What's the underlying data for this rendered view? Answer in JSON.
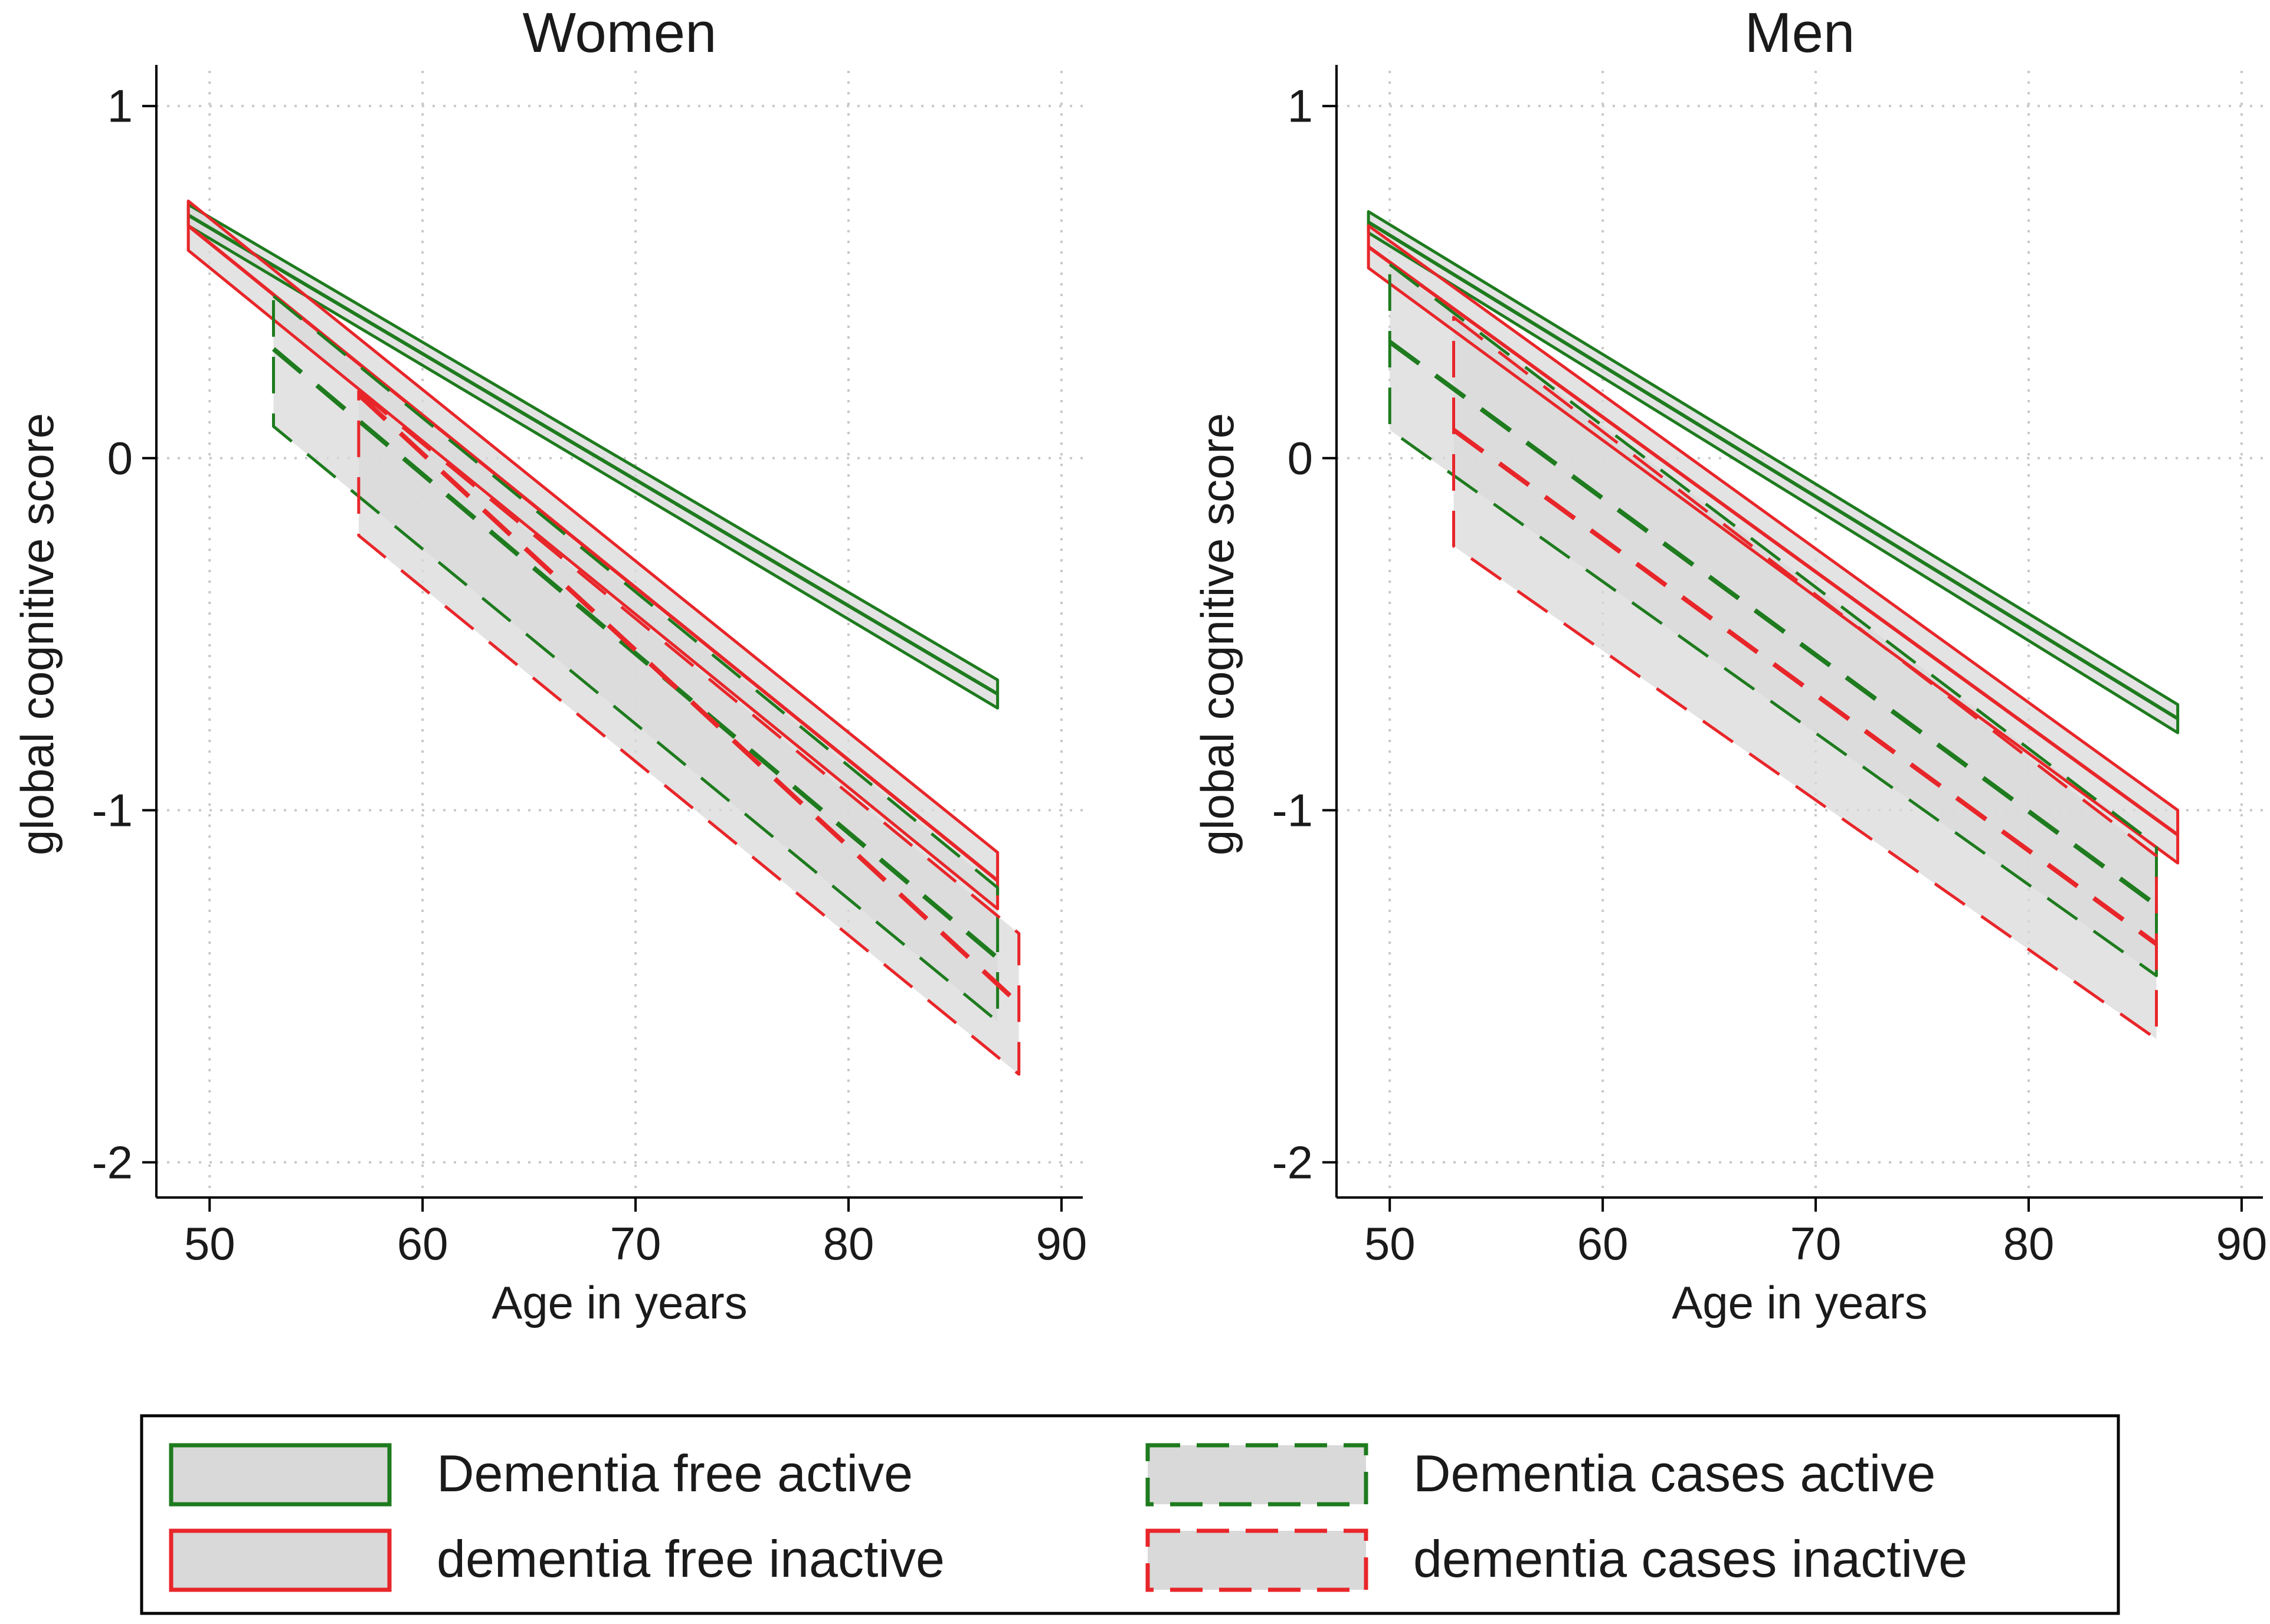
{
  "colors": {
    "active": "#1e7b1e",
    "inactive": "#e8262a",
    "band_fill": "#d9d9d9",
    "axis": "#000000",
    "grid": "#c8c8c8"
  },
  "legend": {
    "items": [
      {
        "label": "Dementia free active",
        "color": "active",
        "dashed": false
      },
      {
        "label": "Dementia cases active",
        "color": "active",
        "dashed": true
      },
      {
        "label": "dementia free inactive",
        "color": "inactive",
        "dashed": false
      },
      {
        "label": "dementia cases inactive",
        "color": "inactive",
        "dashed": true
      }
    ]
  },
  "chart_data": [
    {
      "type": "line",
      "title": "Women",
      "xlabel": "Age in years",
      "ylabel": "global cognitive score",
      "xlim": [
        47.5,
        91
      ],
      "ylim": [
        -2.1,
        1.1
      ],
      "xticks": [
        50,
        60,
        70,
        80,
        90
      ],
      "yticks": [
        1,
        0,
        -1,
        -2
      ],
      "xtick_labels": [
        "50",
        "60",
        "70",
        "80",
        "90"
      ],
      "ytick_labels": [
        "1",
        "0",
        "-1",
        "-2"
      ],
      "grid": true,
      "series": [
        {
          "name": "Dementia free active",
          "color": "active",
          "dashed": false,
          "x": [
            49,
            87
          ],
          "mean": [
            0.69,
            -0.67
          ],
          "upper": [
            0.72,
            -0.63
          ],
          "lower": [
            0.66,
            -0.71
          ]
        },
        {
          "name": "dementia free inactive",
          "color": "inactive",
          "dashed": false,
          "x": [
            49,
            87
          ],
          "mean": [
            0.66,
            -1.2
          ],
          "upper": [
            0.73,
            -1.12
          ],
          "lower": [
            0.59,
            -1.28
          ]
        },
        {
          "name": "Dementia cases active",
          "color": "active",
          "dashed": true,
          "x": [
            53,
            87
          ],
          "mean": [
            0.31,
            -1.42
          ],
          "upper": [
            0.46,
            -1.22
          ],
          "lower": [
            0.09,
            -1.6
          ]
        },
        {
          "name": "dementia cases inactive",
          "color": "inactive",
          "dashed": true,
          "x": [
            57,
            88
          ],
          "mean": [
            0.18,
            -1.55
          ],
          "upper": [
            0.19,
            -1.35
          ],
          "lower": [
            -0.22,
            -1.75
          ]
        }
      ]
    },
    {
      "type": "line",
      "title": "Men",
      "xlabel": "Age in years",
      "ylabel": "global cognitive score",
      "xlim": [
        47.5,
        91
      ],
      "ylim": [
        -2.1,
        1.1
      ],
      "xticks": [
        50,
        60,
        70,
        80,
        90
      ],
      "yticks": [
        1,
        0,
        -1,
        -2
      ],
      "xtick_labels": [
        "50",
        "60",
        "70",
        "80",
        "90"
      ],
      "ytick_labels": [
        "1",
        "0",
        "-1",
        "-2"
      ],
      "grid": true,
      "series": [
        {
          "name": "Dementia free active",
          "color": "active",
          "dashed": false,
          "x": [
            49,
            87
          ],
          "mean": [
            0.67,
            -0.74
          ],
          "upper": [
            0.7,
            -0.7
          ],
          "lower": [
            0.64,
            -0.78
          ]
        },
        {
          "name": "dementia free inactive",
          "color": "inactive",
          "dashed": false,
          "x": [
            49,
            87
          ],
          "mean": [
            0.6,
            -1.07
          ],
          "upper": [
            0.66,
            -1.0
          ],
          "lower": [
            0.54,
            -1.15
          ]
        },
        {
          "name": "Dementia cases active",
          "color": "active",
          "dashed": true,
          "x": [
            50,
            86
          ],
          "mean": [
            0.33,
            -1.27
          ],
          "upper": [
            0.55,
            -1.1
          ],
          "lower": [
            0.08,
            -1.47
          ]
        },
        {
          "name": "dementia cases inactive",
          "color": "inactive",
          "dashed": true,
          "x": [
            53,
            86
          ],
          "mean": [
            0.08,
            -1.38
          ],
          "upper": [
            0.4,
            -1.13
          ],
          "lower": [
            -0.25,
            -1.65
          ]
        }
      ]
    }
  ]
}
